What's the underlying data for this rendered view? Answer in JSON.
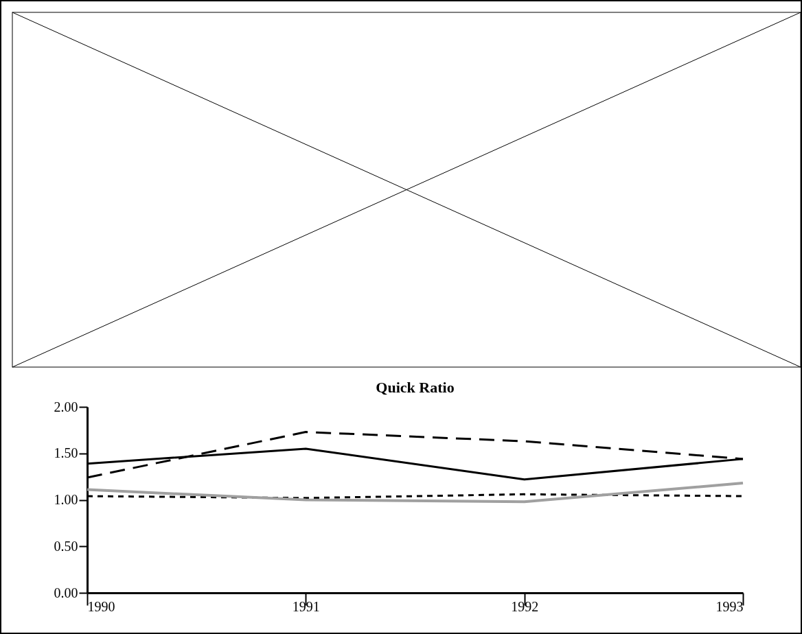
{
  "chart_data": {
    "type": "line",
    "title": "Quick Ratio",
    "x": [
      1990,
      1991,
      1992,
      1993
    ],
    "series": [
      {
        "color": "#000000",
        "line_style": "solid",
        "values": [
          1.39,
          1.55,
          1.22,
          1.44
        ]
      },
      {
        "color": "#000000",
        "line_style": "dashed",
        "values": [
          1.24,
          1.73,
          1.63,
          1.44
        ]
      },
      {
        "color": "#000000",
        "line_style": "dotted",
        "values": [
          1.04,
          1.02,
          1.06,
          1.04
        ]
      },
      {
        "color": "#a0a0a0",
        "line_style": "solid",
        "values": [
          1.11,
          1.0,
          0.98,
          1.18
        ]
      }
    ],
    "xlim": [
      1990,
      1993
    ],
    "xticks": [
      1990,
      1991,
      1992,
      1993
    ],
    "ylim": [
      0,
      2
    ],
    "yticks": [
      {
        "value": 0,
        "label": "0.00"
      },
      {
        "value": 0.5,
        "label": "0.50"
      },
      {
        "value": 1,
        "label": "1.00"
      },
      {
        "value": 1.5,
        "label": "1.50"
      },
      {
        "value": 2,
        "label": "2.00"
      }
    ],
    "marker": "none"
  }
}
